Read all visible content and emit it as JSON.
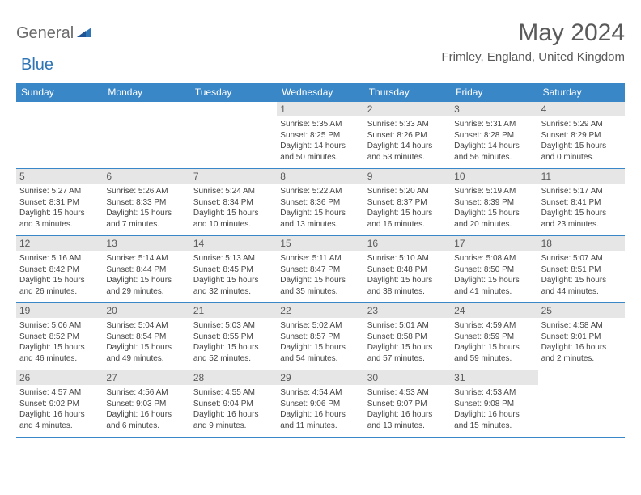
{
  "brand": {
    "general": "General",
    "blue": "Blue"
  },
  "title": "May 2024",
  "location": "Frimley, England, United Kingdom",
  "colors": {
    "header_bg": "#3a87c8",
    "daynum_bg": "#e6e6e6",
    "text": "#5a5a5a",
    "border": "#3a87c8"
  },
  "weekdays": [
    "Sunday",
    "Monday",
    "Tuesday",
    "Wednesday",
    "Thursday",
    "Friday",
    "Saturday"
  ],
  "weeks": [
    [
      {
        "n": "",
        "sr": "",
        "ss": "",
        "dl": ""
      },
      {
        "n": "",
        "sr": "",
        "ss": "",
        "dl": ""
      },
      {
        "n": "",
        "sr": "",
        "ss": "",
        "dl": ""
      },
      {
        "n": "1",
        "sr": "Sunrise: 5:35 AM",
        "ss": "Sunset: 8:25 PM",
        "dl": "Daylight: 14 hours and 50 minutes."
      },
      {
        "n": "2",
        "sr": "Sunrise: 5:33 AM",
        "ss": "Sunset: 8:26 PM",
        "dl": "Daylight: 14 hours and 53 minutes."
      },
      {
        "n": "3",
        "sr": "Sunrise: 5:31 AM",
        "ss": "Sunset: 8:28 PM",
        "dl": "Daylight: 14 hours and 56 minutes."
      },
      {
        "n": "4",
        "sr": "Sunrise: 5:29 AM",
        "ss": "Sunset: 8:29 PM",
        "dl": "Daylight: 15 hours and 0 minutes."
      }
    ],
    [
      {
        "n": "5",
        "sr": "Sunrise: 5:27 AM",
        "ss": "Sunset: 8:31 PM",
        "dl": "Daylight: 15 hours and 3 minutes."
      },
      {
        "n": "6",
        "sr": "Sunrise: 5:26 AM",
        "ss": "Sunset: 8:33 PM",
        "dl": "Daylight: 15 hours and 7 minutes."
      },
      {
        "n": "7",
        "sr": "Sunrise: 5:24 AM",
        "ss": "Sunset: 8:34 PM",
        "dl": "Daylight: 15 hours and 10 minutes."
      },
      {
        "n": "8",
        "sr": "Sunrise: 5:22 AM",
        "ss": "Sunset: 8:36 PM",
        "dl": "Daylight: 15 hours and 13 minutes."
      },
      {
        "n": "9",
        "sr": "Sunrise: 5:20 AM",
        "ss": "Sunset: 8:37 PM",
        "dl": "Daylight: 15 hours and 16 minutes."
      },
      {
        "n": "10",
        "sr": "Sunrise: 5:19 AM",
        "ss": "Sunset: 8:39 PM",
        "dl": "Daylight: 15 hours and 20 minutes."
      },
      {
        "n": "11",
        "sr": "Sunrise: 5:17 AM",
        "ss": "Sunset: 8:41 PM",
        "dl": "Daylight: 15 hours and 23 minutes."
      }
    ],
    [
      {
        "n": "12",
        "sr": "Sunrise: 5:16 AM",
        "ss": "Sunset: 8:42 PM",
        "dl": "Daylight: 15 hours and 26 minutes."
      },
      {
        "n": "13",
        "sr": "Sunrise: 5:14 AM",
        "ss": "Sunset: 8:44 PM",
        "dl": "Daylight: 15 hours and 29 minutes."
      },
      {
        "n": "14",
        "sr": "Sunrise: 5:13 AM",
        "ss": "Sunset: 8:45 PM",
        "dl": "Daylight: 15 hours and 32 minutes."
      },
      {
        "n": "15",
        "sr": "Sunrise: 5:11 AM",
        "ss": "Sunset: 8:47 PM",
        "dl": "Daylight: 15 hours and 35 minutes."
      },
      {
        "n": "16",
        "sr": "Sunrise: 5:10 AM",
        "ss": "Sunset: 8:48 PM",
        "dl": "Daylight: 15 hours and 38 minutes."
      },
      {
        "n": "17",
        "sr": "Sunrise: 5:08 AM",
        "ss": "Sunset: 8:50 PM",
        "dl": "Daylight: 15 hours and 41 minutes."
      },
      {
        "n": "18",
        "sr": "Sunrise: 5:07 AM",
        "ss": "Sunset: 8:51 PM",
        "dl": "Daylight: 15 hours and 44 minutes."
      }
    ],
    [
      {
        "n": "19",
        "sr": "Sunrise: 5:06 AM",
        "ss": "Sunset: 8:52 PM",
        "dl": "Daylight: 15 hours and 46 minutes."
      },
      {
        "n": "20",
        "sr": "Sunrise: 5:04 AM",
        "ss": "Sunset: 8:54 PM",
        "dl": "Daylight: 15 hours and 49 minutes."
      },
      {
        "n": "21",
        "sr": "Sunrise: 5:03 AM",
        "ss": "Sunset: 8:55 PM",
        "dl": "Daylight: 15 hours and 52 minutes."
      },
      {
        "n": "22",
        "sr": "Sunrise: 5:02 AM",
        "ss": "Sunset: 8:57 PM",
        "dl": "Daylight: 15 hours and 54 minutes."
      },
      {
        "n": "23",
        "sr": "Sunrise: 5:01 AM",
        "ss": "Sunset: 8:58 PM",
        "dl": "Daylight: 15 hours and 57 minutes."
      },
      {
        "n": "24",
        "sr": "Sunrise: 4:59 AM",
        "ss": "Sunset: 8:59 PM",
        "dl": "Daylight: 15 hours and 59 minutes."
      },
      {
        "n": "25",
        "sr": "Sunrise: 4:58 AM",
        "ss": "Sunset: 9:01 PM",
        "dl": "Daylight: 16 hours and 2 minutes."
      }
    ],
    [
      {
        "n": "26",
        "sr": "Sunrise: 4:57 AM",
        "ss": "Sunset: 9:02 PM",
        "dl": "Daylight: 16 hours and 4 minutes."
      },
      {
        "n": "27",
        "sr": "Sunrise: 4:56 AM",
        "ss": "Sunset: 9:03 PM",
        "dl": "Daylight: 16 hours and 6 minutes."
      },
      {
        "n": "28",
        "sr": "Sunrise: 4:55 AM",
        "ss": "Sunset: 9:04 PM",
        "dl": "Daylight: 16 hours and 9 minutes."
      },
      {
        "n": "29",
        "sr": "Sunrise: 4:54 AM",
        "ss": "Sunset: 9:06 PM",
        "dl": "Daylight: 16 hours and 11 minutes."
      },
      {
        "n": "30",
        "sr": "Sunrise: 4:53 AM",
        "ss": "Sunset: 9:07 PM",
        "dl": "Daylight: 16 hours and 13 minutes."
      },
      {
        "n": "31",
        "sr": "Sunrise: 4:53 AM",
        "ss": "Sunset: 9:08 PM",
        "dl": "Daylight: 16 hours and 15 minutes."
      },
      {
        "n": "",
        "sr": "",
        "ss": "",
        "dl": ""
      }
    ]
  ]
}
